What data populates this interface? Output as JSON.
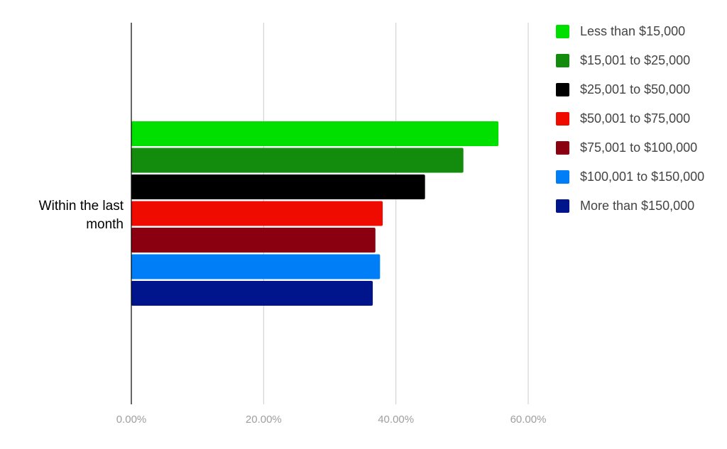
{
  "chart_data": {
    "type": "bar",
    "orientation": "horizontal",
    "categories": [
      "Within the last month"
    ],
    "category_label_lines": [
      [
        "Within the last",
        "month"
      ]
    ],
    "series": [
      {
        "name": "Less than $15,000",
        "values": [
          55.5
        ],
        "color": "#00e000"
      },
      {
        "name": "$15,001 to $25,000",
        "values": [
          50.2
        ],
        "color": "#138b0c"
      },
      {
        "name": "$25,001 to $50,000",
        "values": [
          44.4
        ],
        "color": "#000000"
      },
      {
        "name": "$50,001 to $75,000",
        "values": [
          38.0
        ],
        "color": "#f00b00"
      },
      {
        "name": "$75,001 to $100,000",
        "values": [
          36.9
        ],
        "color": "#8b0011"
      },
      {
        "name": "$100,001 to $150,000",
        "values": [
          37.6
        ],
        "color": "#007ef8"
      },
      {
        "name": "More than $150,000",
        "values": [
          36.5
        ],
        "color": "#00158c"
      }
    ],
    "xlim": [
      0,
      60
    ],
    "x_ticks": [
      0,
      20,
      40,
      60
    ],
    "x_tick_labels": [
      "0.00%",
      "20.00%",
      "40.00%",
      "60.00%"
    ],
    "title": "",
    "xlabel": "",
    "ylabel": "",
    "grid": true,
    "legend_position": "right"
  }
}
